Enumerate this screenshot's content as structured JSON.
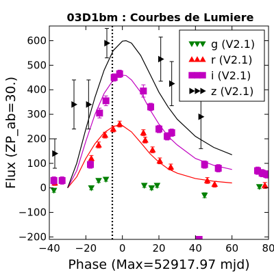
{
  "chart_data": {
    "type": "scatter",
    "title": "03D1bm : Courbes de Lumiere",
    "xlabel": "Phase (Max=52917.97 mjd)",
    "ylabel": "Flux (ZP_ab=30.)",
    "xlim": [
      -40,
      80
    ],
    "ylim": [
      -210,
      660
    ],
    "xticks": [
      -40,
      -20,
      0,
      20,
      40,
      60,
      80
    ],
    "yticks": [
      -200,
      -100,
      0,
      100,
      200,
      300,
      400,
      500,
      600
    ],
    "grid": false,
    "legend_position": "top-right",
    "reference_line_x": -5.5,
    "series": [
      {
        "name": "g (V2.1)",
        "color": "#008000",
        "marker": "triangle-down",
        "points": [
          {
            "x": -37.5,
            "y": -10,
            "err": 8
          },
          {
            "x": -17,
            "y": 0,
            "err": 8
          },
          {
            "x": -13,
            "y": 30,
            "err": 8
          },
          {
            "x": -9,
            "y": 35,
            "err": 8
          },
          {
            "x": 12,
            "y": 10,
            "err": 8
          },
          {
            "x": 16,
            "y": 0,
            "err": 8
          },
          {
            "x": 19,
            "y": 10,
            "err": 8
          },
          {
            "x": 45,
            "y": -30,
            "err": 10
          },
          {
            "x": 75,
            "y": 5,
            "err": 8
          }
        ],
        "curve": []
      },
      {
        "name": "r (V2.1)",
        "color": "#ff0000",
        "marker": "triangle-up",
        "points": [
          {
            "x": -37,
            "y": 20,
            "err": 10
          },
          {
            "x": -17,
            "y": 120,
            "err": 12
          },
          {
            "x": -13,
            "y": 175,
            "err": 12
          },
          {
            "x": -9.5,
            "y": 215,
            "err": 12
          },
          {
            "x": -5,
            "y": 240,
            "err": 12
          },
          {
            "x": -1.5,
            "y": 260,
            "err": 12
          },
          {
            "x": 11.5,
            "y": 225,
            "err": 12
          },
          {
            "x": 12.5,
            "y": 195,
            "err": 12
          },
          {
            "x": 16.5,
            "y": 155,
            "err": 12
          },
          {
            "x": 20.5,
            "y": 110,
            "err": 12
          },
          {
            "x": 26.5,
            "y": 85,
            "err": 12
          },
          {
            "x": 46.5,
            "y": 30,
            "err": 12
          },
          {
            "x": 50.5,
            "y": 15,
            "err": 12
          },
          {
            "x": 78,
            "y": 10,
            "err": 12
          }
        ],
        "curve": [
          {
            "x": -30,
            "y": 0
          },
          {
            "x": -25,
            "y": 45
          },
          {
            "x": -20,
            "y": 120
          },
          {
            "x": -15,
            "y": 180
          },
          {
            "x": -10,
            "y": 225
          },
          {
            "x": -5,
            "y": 250
          },
          {
            "x": -2,
            "y": 256
          },
          {
            "x": 0,
            "y": 254
          },
          {
            "x": 5,
            "y": 228
          },
          {
            "x": 10,
            "y": 185
          },
          {
            "x": 15,
            "y": 140
          },
          {
            "x": 20,
            "y": 105
          },
          {
            "x": 25,
            "y": 78
          },
          {
            "x": 30,
            "y": 60
          },
          {
            "x": 40,
            "y": 38
          },
          {
            "x": 50,
            "y": 27
          },
          {
            "x": 60,
            "y": 20
          }
        ]
      },
      {
        "name": "i (V2.1)",
        "color": "#c000c0",
        "marker": "square",
        "points": [
          {
            "x": -37.5,
            "y": 30,
            "err": 15
          },
          {
            "x": -33,
            "y": 30,
            "err": 15
          },
          {
            "x": -17.5,
            "y": 95,
            "err": 15
          },
          {
            "x": -12.5,
            "y": 305,
            "err": 20
          },
          {
            "x": -9,
            "y": 355,
            "err": 20
          },
          {
            "x": -4.5,
            "y": 450,
            "err": 15
          },
          {
            "x": -1.5,
            "y": 465,
            "err": 15
          },
          {
            "x": 11.5,
            "y": 395,
            "err": 25
          },
          {
            "x": 15.5,
            "y": 330,
            "err": 15
          },
          {
            "x": 20,
            "y": 240,
            "err": 15
          },
          {
            "x": 24.5,
            "y": 210,
            "err": 15
          },
          {
            "x": 27,
            "y": 225,
            "err": 15
          },
          {
            "x": 42,
            "y": -210,
            "err": 10
          },
          {
            "x": 45,
            "y": 95,
            "err": 15
          },
          {
            "x": 52.5,
            "y": 80,
            "err": 15
          },
          {
            "x": 74,
            "y": 70,
            "err": 15
          },
          {
            "x": 76.5,
            "y": 60,
            "err": 15
          },
          {
            "x": 79,
            "y": 55,
            "err": 15
          }
        ],
        "curve": [
          {
            "x": -30,
            "y": 0
          },
          {
            "x": -25,
            "y": 70
          },
          {
            "x": -20,
            "y": 190
          },
          {
            "x": -15,
            "y": 300
          },
          {
            "x": -10,
            "y": 385
          },
          {
            "x": -5,
            "y": 440
          },
          {
            "x": -1,
            "y": 460
          },
          {
            "x": 2,
            "y": 458
          },
          {
            "x": 5,
            "y": 440
          },
          {
            "x": 10,
            "y": 390
          },
          {
            "x": 15,
            "y": 320
          },
          {
            "x": 20,
            "y": 260
          },
          {
            "x": 25,
            "y": 210
          },
          {
            "x": 30,
            "y": 175
          },
          {
            "x": 40,
            "y": 120
          },
          {
            "x": 50,
            "y": 92
          },
          {
            "x": 60,
            "y": 75
          }
        ]
      },
      {
        "name": "z (V2.1)",
        "color": "#000000",
        "marker": "triangle-right",
        "points": [
          {
            "x": -37,
            "y": 140,
            "err": 60
          },
          {
            "x": -26.5,
            "y": 340,
            "err": 100
          },
          {
            "x": -18.5,
            "y": 340,
            "err": 100
          },
          {
            "x": -8.5,
            "y": 590,
            "err": 60
          },
          {
            "x": 21,
            "y": 525,
            "err": 90
          },
          {
            "x": 27,
            "y": 425,
            "err": 90
          },
          {
            "x": 43,
            "y": 290,
            "err": 130
          }
        ],
        "curve": [
          {
            "x": -30,
            "y": 0
          },
          {
            "x": -25,
            "y": 100
          },
          {
            "x": -20,
            "y": 240
          },
          {
            "x": -15,
            "y": 370
          },
          {
            "x": -10,
            "y": 480
          },
          {
            "x": -5,
            "y": 560
          },
          {
            "x": 0,
            "y": 598
          },
          {
            "x": 2,
            "y": 600
          },
          {
            "x": 5,
            "y": 590
          },
          {
            "x": 10,
            "y": 540
          },
          {
            "x": 15,
            "y": 465
          },
          {
            "x": 20,
            "y": 390
          },
          {
            "x": 25,
            "y": 330
          },
          {
            "x": 30,
            "y": 280
          },
          {
            "x": 40,
            "y": 210
          },
          {
            "x": 50,
            "y": 165
          },
          {
            "x": 60,
            "y": 135
          }
        ]
      }
    ]
  }
}
